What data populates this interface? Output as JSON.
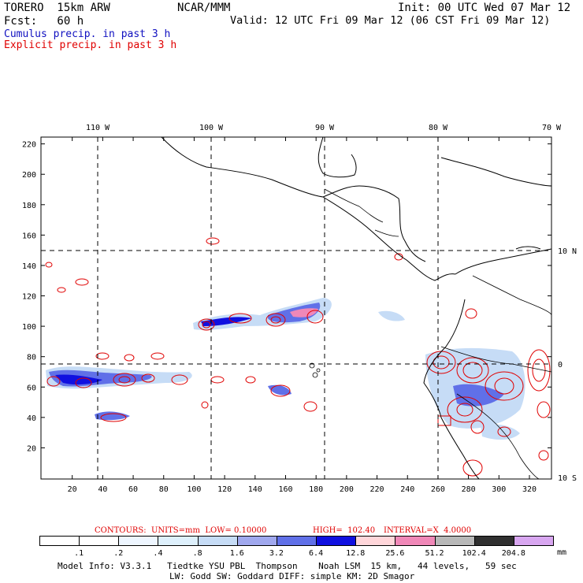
{
  "header": {
    "model": "TORERO  15km ARW",
    "org": "NCAR/MMM",
    "init": "Init: 00 UTC Wed 07 Mar 12",
    "fcst": "Fcst:   60 h",
    "valid": "Valid: 12 UTC Fri 09 Mar 12 (06 CST Fri 09 Mar 12)",
    "field1": "Cumulus precip. in past 3 h",
    "field2": "Explicit precip. in past 3 h",
    "field1_color": "#1010c0",
    "field2_color": "#e00000"
  },
  "map": {
    "lon_labels": [
      "110 W",
      "100 W",
      "90 W",
      "80 W",
      "70 W"
    ],
    "lat_labels": [
      "10 N",
      "0",
      "10 S"
    ],
    "x_ticks": [
      "20",
      "40",
      "60",
      "80",
      "100",
      "120",
      "140",
      "160",
      "180",
      "200",
      "220",
      "240",
      "260",
      "280",
      "300",
      "320"
    ],
    "y_ticks": [
      "20",
      "40",
      "60",
      "80",
      "100",
      "120",
      "140",
      "160",
      "180",
      "200",
      "220"
    ]
  },
  "contour_info": {
    "label": "CONTOURS:  UNITS=mm  LOW= 0.10000",
    "high": "HIGH=  102.40",
    "interval": "INTERVAL=X  4.0000"
  },
  "colorbar": {
    "unit": "mm",
    "labels": [
      ".1",
      ".2",
      ".4",
      ".8",
      "1.6",
      "3.2",
      "6.4",
      "12.8",
      "25.6",
      "51.2",
      "102.4",
      "204.8"
    ],
    "colors": [
      "#ffffff",
      "#ffffff",
      "#eef6ff",
      "#def0fc",
      "#c6dcf6",
      "#a0a8ee",
      "#6070e8",
      "#1010e0",
      "#ffd6da",
      "#f088b8",
      "#b8b8b8",
      "#303030",
      "#d8a6f0"
    ]
  },
  "footer": {
    "line1": "Model Info: V3.3.1   Tiedtke YSU PBL  Thompson    Noah LSM  15 km,   44 levels,   59 sec",
    "line2": "LW: Godd SW: Goddard DIFF: simple KM: 2D Smagor"
  }
}
